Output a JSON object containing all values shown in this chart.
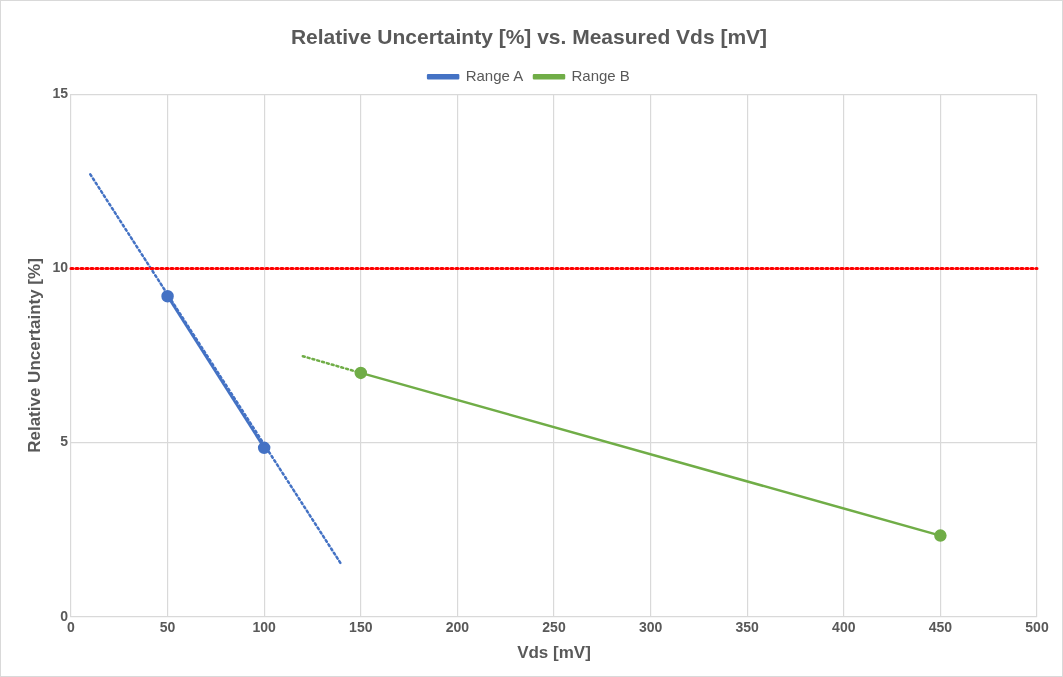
{
  "chart_data": {
    "type": "line",
    "title": "Relative Uncertainty [%] vs. Measured Vds [mV]",
    "xlabel": "Vds [mV]",
    "ylabel": "Relative Uncertainty [%]",
    "xlim": [
      0,
      500
    ],
    "xticks": [
      0,
      50,
      100,
      150,
      200,
      250,
      300,
      350,
      400,
      450,
      500
    ],
    "ylim": [
      0,
      15
    ],
    "yticks": [
      0,
      5,
      10,
      15
    ],
    "grid": true,
    "legend": "top",
    "marker": "circle",
    "line_style": "solid",
    "series": [
      {
        "name": "Range A",
        "color": "#4472c4",
        "x": [
          50,
          100
        ],
        "values": [
          9.2,
          4.85
        ]
      },
      {
        "name": "Range B",
        "color": "#70ad47",
        "x": [
          150,
          450
        ],
        "values": [
          7.0,
          2.33
        ]
      },
      {
        "color": "#4472c4",
        "x": [
          10,
          140
        ],
        "values": [
          12.7,
          1.5
        ],
        "line_style": "dotted",
        "marker": "none"
      },
      {
        "color": "#70ad47",
        "x": [
          120,
          150
        ],
        "values": [
          7.48,
          7.0
        ],
        "line_style": "dotted",
        "marker": "none"
      }
    ],
    "ref_lines": [
      {
        "axis": "y",
        "value": 10,
        "color": "#ff0000",
        "line_style": "dotted"
      }
    ]
  }
}
